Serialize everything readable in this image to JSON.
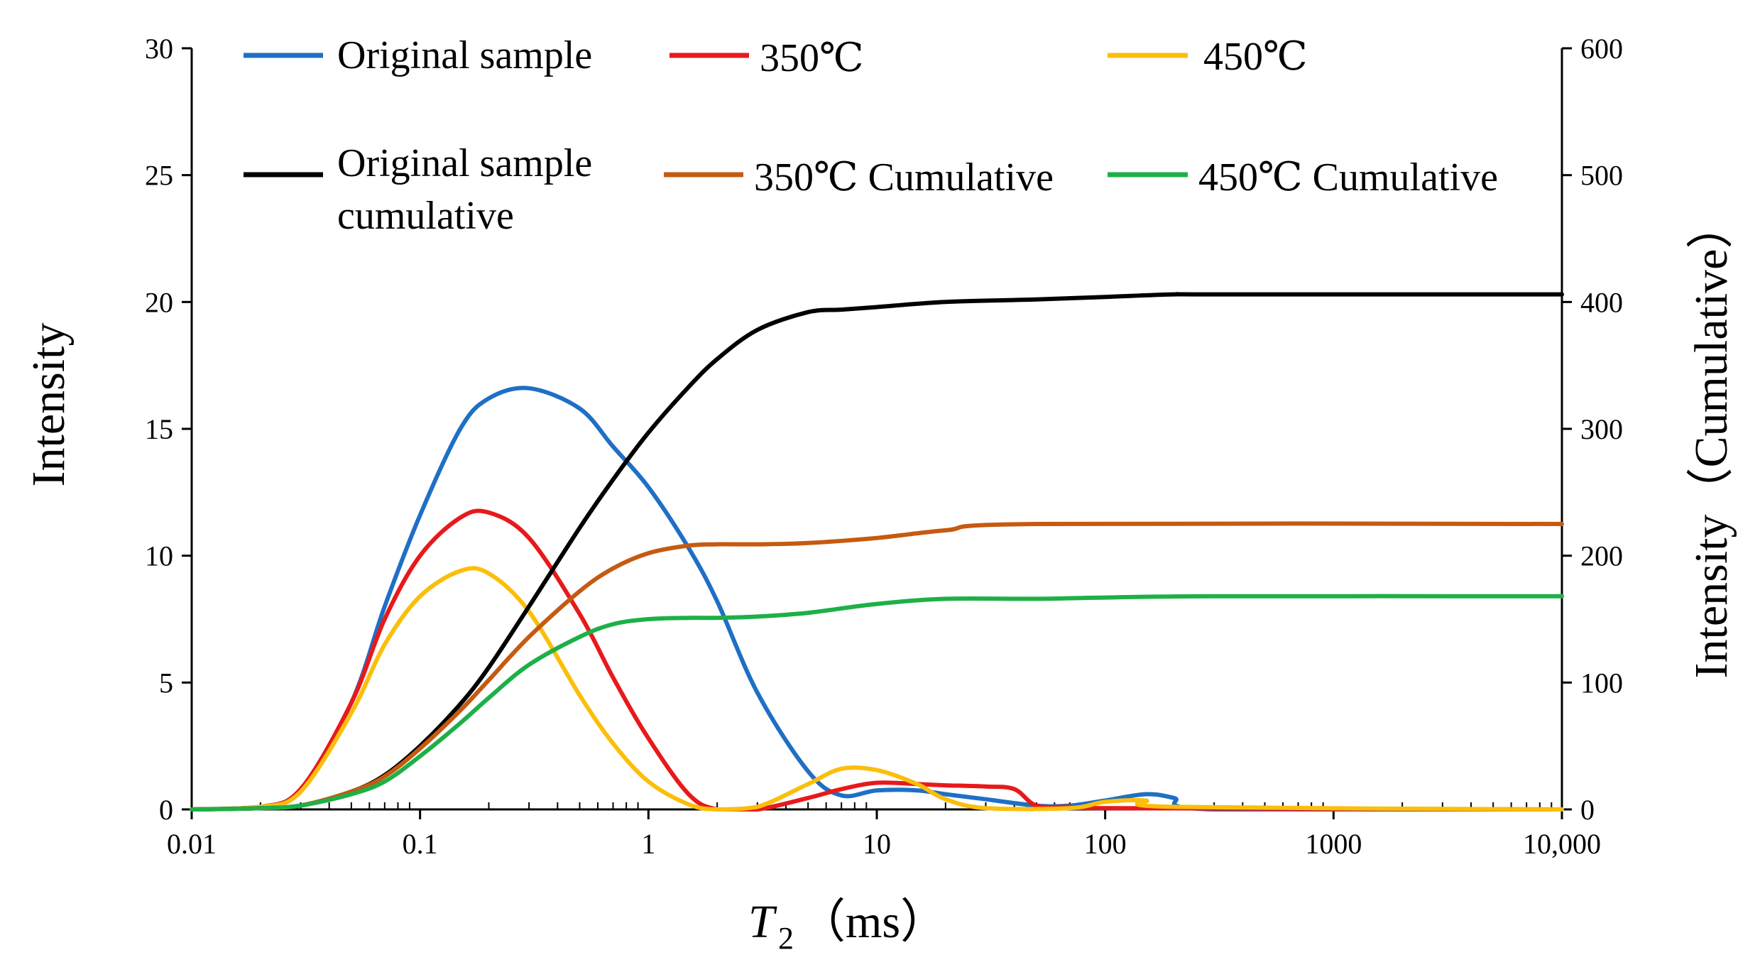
{
  "chart_data": {
    "type": "line",
    "xscale": "log",
    "xlim": [
      0.01,
      10000
    ],
    "ylim_left": [
      0,
      30
    ],
    "ylim_right": [
      0,
      600
    ],
    "x_ticks": [
      0.01,
      0.1,
      1,
      10,
      100,
      1000,
      10000
    ],
    "x_tick_labels": [
      "0.01",
      "0.1",
      "1",
      "10",
      "100",
      "1000",
      "10,000"
    ],
    "y_left_ticks": [
      0,
      5,
      10,
      15,
      20,
      25,
      30
    ],
    "y_left_tick_labels": [
      "0",
      "5",
      "10",
      "15",
      "20",
      "25",
      "30"
    ],
    "y_right_ticks": [
      0,
      100,
      200,
      300,
      400,
      500,
      600
    ],
    "y_right_tick_labels": [
      "0",
      "100",
      "200",
      "300",
      "400",
      "500",
      "600"
    ],
    "xlabel_main": "T",
    "xlabel_sub": "2",
    "xlabel_unit": "（ms）",
    "ylabel_left": "Intensity",
    "ylabel_right": "Intensity（Cumulative）",
    "legend": {
      "original": "Original sample",
      "t350": "350℃",
      "t450": "450℃",
      "original_cum_line1": "Original sample",
      "original_cum_line2": "cumulative",
      "t350_cum": "350℃ Cumulative",
      "t450_cum": "450℃ Cumulative"
    },
    "series": [
      {
        "name": "Original sample",
        "axis": "left",
        "color": "#1F6FC5",
        "x": [
          0.01,
          0.02,
          0.03,
          0.05,
          0.07,
          0.1,
          0.15,
          0.2,
          0.3,
          0.5,
          0.7,
          1,
          1.5,
          2,
          3,
          5,
          7,
          10,
          15,
          20,
          30,
          50,
          70,
          100,
          150,
          200,
          300,
          10000
        ],
        "y": [
          0,
          0.1,
          0.8,
          4.2,
          8.0,
          11.6,
          15.0,
          16.2,
          16.6,
          15.8,
          14.3,
          12.7,
          10.3,
          8.2,
          4.6,
          1.5,
          0.55,
          0.75,
          0.75,
          0.6,
          0.4,
          0.15,
          0.15,
          0.35,
          0.6,
          0.45,
          0,
          0
        ]
      },
      {
        "name": "350℃",
        "axis": "left",
        "color": "#E8191B",
        "x": [
          0.01,
          0.02,
          0.03,
          0.05,
          0.07,
          0.1,
          0.15,
          0.2,
          0.3,
          0.5,
          0.7,
          1,
          1.5,
          2,
          3,
          5,
          7,
          10,
          15,
          20,
          30,
          40,
          50,
          70,
          100,
          10000
        ],
        "y": [
          0,
          0.1,
          0.8,
          4.2,
          7.5,
          10.0,
          11.5,
          11.7,
          10.7,
          7.7,
          5.2,
          2.8,
          0.6,
          0,
          0,
          0.45,
          0.8,
          1.05,
          1.0,
          0.95,
          0.9,
          0.8,
          0.15,
          0.1,
          0.05,
          0
        ]
      },
      {
        "name": "450℃",
        "axis": "left",
        "color": "#FBBE0A",
        "x": [
          0.01,
          0.02,
          0.03,
          0.05,
          0.07,
          0.1,
          0.15,
          0.2,
          0.3,
          0.5,
          0.7,
          1,
          1.5,
          2,
          3,
          5,
          7,
          10,
          15,
          20,
          30,
          70,
          100,
          150,
          200,
          10000
        ],
        "y": [
          0,
          0.1,
          0.7,
          3.8,
          6.5,
          8.4,
          9.4,
          9.3,
          7.8,
          4.5,
          2.6,
          1.1,
          0.2,
          0,
          0.1,
          1.0,
          1.6,
          1.55,
          1.0,
          0.4,
          0.05,
          0.05,
          0.3,
          0.35,
          0.1,
          0
        ]
      },
      {
        "name": "Original sample cumulative",
        "axis": "right",
        "color": "#000000",
        "x": [
          0.01,
          0.02,
          0.03,
          0.05,
          0.07,
          0.1,
          0.15,
          0.2,
          0.3,
          0.5,
          0.7,
          1,
          1.5,
          2,
          3,
          5,
          7,
          10,
          20,
          50,
          100,
          200,
          300,
          10000
        ],
        "y": [
          0,
          1,
          3,
          14,
          27,
          50,
          83,
          112,
          160,
          222,
          260,
          297,
          333,
          355,
          378,
          392,
          394,
          396,
          400,
          402,
          404,
          406,
          406,
          406
        ]
      },
      {
        "name": "350℃ Cumulative",
        "axis": "right",
        "color": "#C55A11",
        "x": [
          0.01,
          0.02,
          0.03,
          0.05,
          0.07,
          0.1,
          0.15,
          0.2,
          0.3,
          0.5,
          0.7,
          1,
          1.5,
          2,
          3,
          5,
          10,
          20,
          50,
          10000
        ],
        "y": [
          0,
          1,
          3,
          14,
          26,
          48,
          78,
          102,
          136,
          172,
          190,
          202,
          208,
          209,
          209,
          210,
          214,
          220,
          225,
          225
        ]
      },
      {
        "name": "450℃ Cumulative",
        "axis": "right",
        "color": "#1DB047",
        "x": [
          0.01,
          0.02,
          0.03,
          0.05,
          0.07,
          0.1,
          0.15,
          0.2,
          0.3,
          0.5,
          0.7,
          1,
          1.5,
          2,
          3,
          5,
          10,
          20,
          50,
          100,
          300,
          10000
        ],
        "y": [
          0,
          1,
          3,
          12,
          22,
          42,
          68,
          88,
          114,
          136,
          146,
          150,
          151,
          151,
          152,
          155,
          162,
          166,
          166,
          167,
          168,
          168
        ]
      }
    ]
  }
}
